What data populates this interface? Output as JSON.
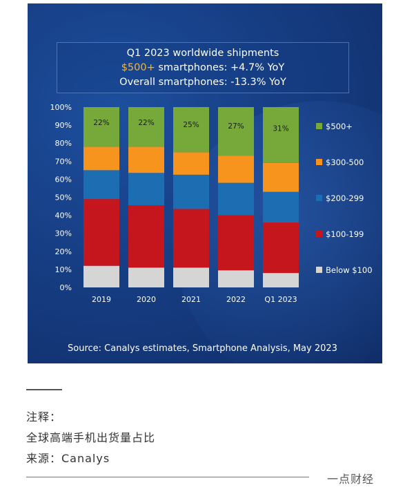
{
  "chart_data": {
    "type": "bar",
    "stacked": true,
    "title_lines": [
      "Q1 2023 worldwide shipments"
    ],
    "subtitle_highlight": "$500+",
    "subtitle_rest": " smartphones: +4.7% YoY",
    "subtitle2": "Overall smartphones: -13.3% YoY",
    "categories": [
      "2019",
      "2020",
      "2021",
      "2022",
      "Q1 2023"
    ],
    "y_ticks": [
      "0%",
      "10%",
      "20%",
      "30%",
      "40%",
      "50%",
      "60%",
      "70%",
      "80%",
      "90%",
      "100%"
    ],
    "ylim": [
      0,
      100
    ],
    "legend_position": "right",
    "series": [
      {
        "name": "Below $100",
        "color": "#d5d5d5",
        "values": [
          12,
          11,
          11,
          9.5,
          8
        ]
      },
      {
        "name": "$100-199",
        "color": "#c5161d",
        "values": [
          37,
          34.5,
          32.5,
          30.5,
          28
        ]
      },
      {
        "name": "$200-299",
        "color": "#1d6db3",
        "values": [
          16,
          18,
          19,
          18,
          17
        ]
      },
      {
        "name": "$300-500",
        "color": "#f7941d",
        "values": [
          13,
          14.5,
          12.5,
          15,
          16
        ]
      },
      {
        "name": "$500+",
        "color": "#76a83a",
        "values": [
          22,
          22,
          25,
          27,
          31
        ]
      }
    ],
    "data_labels": [
      "22%",
      "22%",
      "25%",
      "27%",
      "31%"
    ],
    "source": "Source: Canalys estimates, Smartphone Analysis, May 2023"
  },
  "notes": {
    "line1": "注释：",
    "line2": "全球高端手机出货量占比",
    "line3": "来源：Canalys"
  },
  "brand": "一点财经"
}
